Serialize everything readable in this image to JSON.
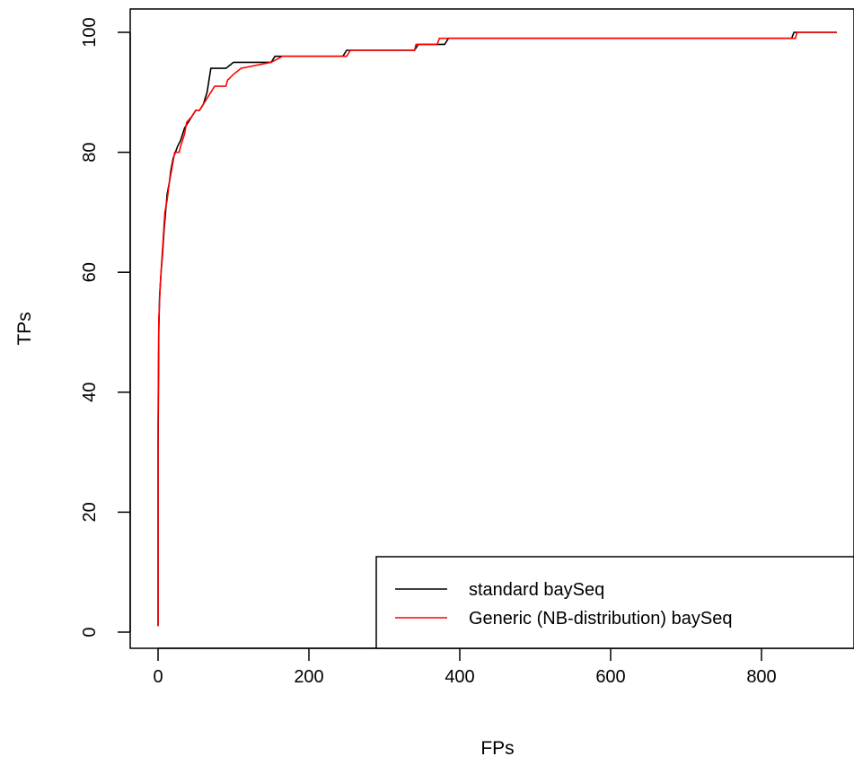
{
  "chart_data": {
    "type": "line",
    "title": "",
    "xlabel": "FPs",
    "ylabel": "TPs",
    "xlim": [
      0,
      900
    ],
    "ylim": [
      0,
      100
    ],
    "xticks": [
      0,
      200,
      400,
      600,
      800
    ],
    "yticks": [
      0,
      20,
      40,
      60,
      80,
      100
    ],
    "x_tick_labels": [
      "0",
      "200",
      "400",
      "600",
      "800"
    ],
    "y_tick_labels": [
      "0",
      "20",
      "40",
      "60",
      "80",
      "100"
    ],
    "grid": false,
    "legend_position": "bottom-right",
    "series": [
      {
        "name": "standard baySeq",
        "color": "#000000",
        "points": [
          [
            0,
            1
          ],
          [
            0,
            30
          ],
          [
            1,
            50
          ],
          [
            2,
            56
          ],
          [
            4,
            60
          ],
          [
            6,
            63
          ],
          [
            8,
            67
          ],
          [
            10,
            70
          ],
          [
            12,
            73
          ],
          [
            15,
            75
          ],
          [
            17,
            77
          ],
          [
            20,
            79
          ],
          [
            23,
            80
          ],
          [
            26,
            81
          ],
          [
            30,
            82
          ],
          [
            35,
            84
          ],
          [
            40,
            85
          ],
          [
            45,
            86
          ],
          [
            50,
            87
          ],
          [
            55,
            87
          ],
          [
            60,
            88
          ],
          [
            65,
            90
          ],
          [
            70,
            94
          ],
          [
            80,
            94
          ],
          [
            90,
            94
          ],
          [
            100,
            95
          ],
          [
            150,
            95
          ],
          [
            155,
            96
          ],
          [
            200,
            96
          ],
          [
            245,
            96
          ],
          [
            250,
            97
          ],
          [
            340,
            97
          ],
          [
            345,
            98
          ],
          [
            380,
            98
          ],
          [
            385,
            99
          ],
          [
            840,
            99
          ],
          [
            843,
            100
          ],
          [
            900,
            100
          ]
        ]
      },
      {
        "name": "Generic (NB-distribution) baySeq",
        "color": "#ff0000",
        "points": [
          [
            0,
            1
          ],
          [
            0,
            35
          ],
          [
            1,
            52
          ],
          [
            3,
            58
          ],
          [
            5,
            62
          ],
          [
            7,
            66
          ],
          [
            9,
            70
          ],
          [
            12,
            72
          ],
          [
            15,
            75
          ],
          [
            18,
            77
          ],
          [
            22,
            80
          ],
          [
            28,
            80
          ],
          [
            30,
            81
          ],
          [
            35,
            83
          ],
          [
            38,
            85
          ],
          [
            45,
            86
          ],
          [
            50,
            87
          ],
          [
            55,
            87
          ],
          [
            60,
            88
          ],
          [
            65,
            89
          ],
          [
            70,
            90
          ],
          [
            75,
            91
          ],
          [
            90,
            91
          ],
          [
            92,
            92
          ],
          [
            100,
            93
          ],
          [
            110,
            94
          ],
          [
            150,
            95
          ],
          [
            165,
            96
          ],
          [
            200,
            96
          ],
          [
            250,
            96
          ],
          [
            255,
            97
          ],
          [
            340,
            97
          ],
          [
            342,
            98
          ],
          [
            370,
            98
          ],
          [
            373,
            99
          ],
          [
            845,
            99
          ],
          [
            847,
            100
          ],
          [
            900,
            100
          ]
        ]
      }
    ]
  }
}
